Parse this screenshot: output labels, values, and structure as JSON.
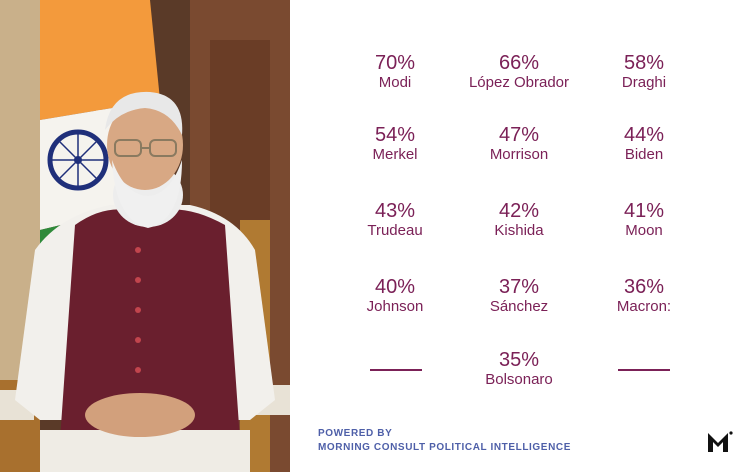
{
  "leaders": [
    {
      "pct": "70%",
      "name": "Modi"
    },
    {
      "pct": "66%",
      "name": "López Obrador"
    },
    {
      "pct": "58%",
      "name": "Draghi"
    },
    {
      "pct": "54%",
      "name": "Merkel"
    },
    {
      "pct": "47%",
      "name": "Morrison"
    },
    {
      "pct": "44%",
      "name": "Biden"
    },
    {
      "pct": "43%",
      "name": "Trudeau"
    },
    {
      "pct": "42%",
      "name": "Kishida"
    },
    {
      "pct": "41%",
      "name": "Moon"
    },
    {
      "pct": "40%",
      "name": "Johnson"
    },
    {
      "pct": "37%",
      "name": "Sánchez"
    },
    {
      "pct": "36%",
      "name": "Macron:"
    },
    {
      "pct": "35%",
      "name": "Bolsonaro"
    }
  ],
  "footer": {
    "line1": "POWERED BY",
    "line2": "MORNING CONSULT POLITICAL INTELLIGENCE"
  },
  "colors": {
    "text": "#7b2157",
    "footer": "#4e5fa8"
  },
  "icons": {
    "logo": "morning-consult-logo-icon"
  }
}
